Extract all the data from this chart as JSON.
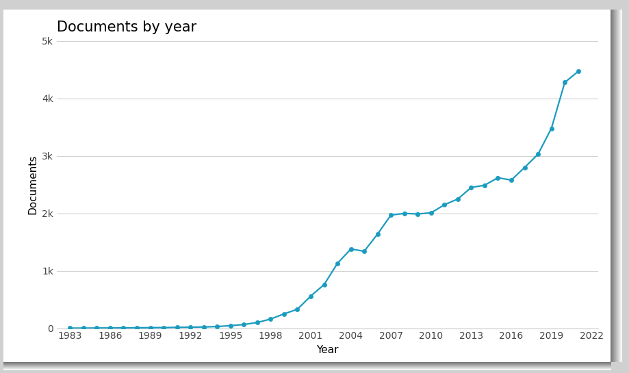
{
  "title": "Documents by year",
  "xlabel": "Year",
  "ylabel": "Documents",
  "line_color": "#1a9bbf",
  "marker_color": "#1a9bbf",
  "background_color": "#ffffff",
  "outer_background": "#e8e8e8",
  "years": [
    1983,
    1984,
    1985,
    1986,
    1987,
    1988,
    1989,
    1990,
    1991,
    1992,
    1993,
    1994,
    1995,
    1996,
    1997,
    1998,
    1999,
    2000,
    2001,
    2002,
    2003,
    2004,
    2005,
    2006,
    2007,
    2008,
    2009,
    2010,
    2011,
    2012,
    2013,
    2014,
    2015,
    2016,
    2017,
    2018,
    2019,
    2020,
    2021
  ],
  "values": [
    2,
    3,
    4,
    5,
    6,
    8,
    10,
    12,
    15,
    18,
    22,
    30,
    45,
    65,
    100,
    160,
    250,
    330,
    560,
    760,
    1130,
    1380,
    1340,
    1640,
    1970,
    2000,
    1990,
    2010,
    2150,
    2250,
    2450,
    2490,
    2620,
    2580,
    2800,
    3030,
    3480,
    4280,
    4470
  ],
  "xlim": [
    1982,
    2022.5
  ],
  "ylim": [
    0,
    5000
  ],
  "xticks": [
    1983,
    1986,
    1989,
    1992,
    1995,
    1998,
    2001,
    2004,
    2007,
    2010,
    2013,
    2016,
    2019,
    2022
  ],
  "yticks": [
    0,
    1000,
    2000,
    3000,
    4000,
    5000
  ],
  "ytick_labels": [
    "0",
    "1k",
    "2k",
    "3k",
    "4k",
    "5k"
  ],
  "title_fontsize": 15,
  "axis_label_fontsize": 11,
  "tick_fontsize": 10,
  "grid_color": "#d0d0d0",
  "line_width": 1.6,
  "marker_size": 4.5
}
